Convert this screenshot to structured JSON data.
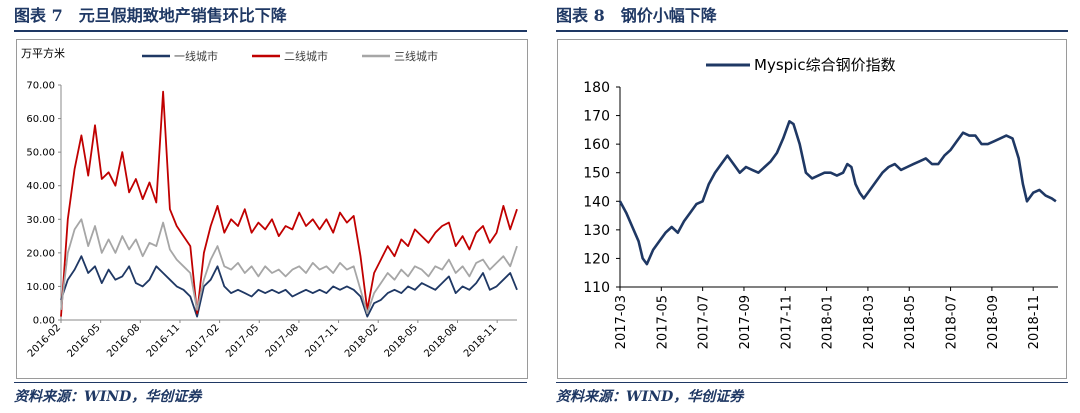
{
  "left_panel": {
    "heading": "图表 7　元旦假期致地产销售环比下降",
    "source": "资料来源：WIND，华创证券"
  },
  "right_panel": {
    "heading": "图表 8　钢价小幅下降",
    "source": "资料来源：WIND，华创证券"
  },
  "chart_data": [
    {
      "type": "line",
      "title": "",
      "ylabel": "万平方米",
      "xlabel": "",
      "ylim": [
        0,
        70
      ],
      "y_ticks": [
        "0.00",
        "10.00",
        "20.00",
        "30.00",
        "40.00",
        "50.00",
        "60.00",
        "70.00"
      ],
      "x_ticks": [
        "2016-02",
        "2016-05",
        "2016-08",
        "2016-11",
        "2017-02",
        "2017-05",
        "2017-08",
        "2017-11",
        "2018-02",
        "2018-05",
        "2018-08",
        "2018-11"
      ],
      "legend_position": "top",
      "grid": false,
      "series": [
        {
          "name": "一线城市",
          "color": "#1f3864",
          "points": [
            [
              0,
              6
            ],
            [
              2,
              12
            ],
            [
              4,
              15
            ],
            [
              6,
              19
            ],
            [
              8,
              14
            ],
            [
              10,
              16
            ],
            [
              12,
              11
            ],
            [
              14,
              15
            ],
            [
              16,
              12
            ],
            [
              18,
              13
            ],
            [
              20,
              16
            ],
            [
              22,
              11
            ],
            [
              24,
              10
            ],
            [
              26,
              12
            ],
            [
              28,
              16
            ],
            [
              30,
              14
            ],
            [
              32,
              12
            ],
            [
              34,
              10
            ],
            [
              36,
              9
            ],
            [
              38,
              7
            ],
            [
              40,
              1
            ],
            [
              42,
              10
            ],
            [
              44,
              12
            ],
            [
              46,
              16
            ],
            [
              48,
              10
            ],
            [
              50,
              8
            ],
            [
              52,
              9
            ],
            [
              54,
              8
            ],
            [
              56,
              7
            ],
            [
              58,
              9
            ],
            [
              60,
              8
            ],
            [
              62,
              9
            ],
            [
              64,
              8
            ],
            [
              66,
              9
            ],
            [
              68,
              7
            ],
            [
              70,
              8
            ],
            [
              72,
              9
            ],
            [
              74,
              8
            ],
            [
              76,
              9
            ],
            [
              78,
              8
            ],
            [
              80,
              10
            ],
            [
              82,
              9
            ],
            [
              84,
              10
            ],
            [
              86,
              9
            ],
            [
              88,
              7
            ],
            [
              90,
              1
            ],
            [
              92,
              5
            ],
            [
              94,
              6
            ],
            [
              96,
              8
            ],
            [
              98,
              9
            ],
            [
              100,
              8
            ],
            [
              102,
              10
            ],
            [
              104,
              9
            ],
            [
              106,
              11
            ],
            [
              108,
              10
            ],
            [
              110,
              9
            ],
            [
              112,
              11
            ],
            [
              114,
              13
            ],
            [
              116,
              8
            ],
            [
              118,
              10
            ],
            [
              120,
              9
            ],
            [
              122,
              11
            ],
            [
              124,
              14
            ],
            [
              126,
              9
            ],
            [
              128,
              10
            ],
            [
              130,
              12
            ],
            [
              132,
              14
            ],
            [
              134,
              9
            ]
          ]
        },
        {
          "name": "二线城市",
          "color": "#c00000",
          "points": [
            [
              0,
              1
            ],
            [
              2,
              30
            ],
            [
              4,
              45
            ],
            [
              6,
              55
            ],
            [
              8,
              43
            ],
            [
              10,
              58
            ],
            [
              12,
              42
            ],
            [
              14,
              44
            ],
            [
              16,
              40
            ],
            [
              18,
              50
            ],
            [
              20,
              38
            ],
            [
              22,
              42
            ],
            [
              24,
              36
            ],
            [
              26,
              41
            ],
            [
              28,
              35
            ],
            [
              30,
              68
            ],
            [
              32,
              33
            ],
            [
              34,
              28
            ],
            [
              36,
              25
            ],
            [
              38,
              22
            ],
            [
              40,
              2
            ],
            [
              42,
              20
            ],
            [
              44,
              28
            ],
            [
              46,
              34
            ],
            [
              48,
              26
            ],
            [
              50,
              30
            ],
            [
              52,
              28
            ],
            [
              54,
              33
            ],
            [
              56,
              26
            ],
            [
              58,
              29
            ],
            [
              60,
              27
            ],
            [
              62,
              30
            ],
            [
              64,
              25
            ],
            [
              66,
              28
            ],
            [
              68,
              27
            ],
            [
              70,
              32
            ],
            [
              72,
              28
            ],
            [
              74,
              30
            ],
            [
              76,
              27
            ],
            [
              78,
              30
            ],
            [
              80,
              26
            ],
            [
              82,
              32
            ],
            [
              84,
              29
            ],
            [
              86,
              31
            ],
            [
              88,
              19
            ],
            [
              90,
              3
            ],
            [
              92,
              14
            ],
            [
              94,
              18
            ],
            [
              96,
              22
            ],
            [
              98,
              19
            ],
            [
              100,
              24
            ],
            [
              102,
              22
            ],
            [
              104,
              27
            ],
            [
              106,
              25
            ],
            [
              108,
              23
            ],
            [
              110,
              26
            ],
            [
              112,
              28
            ],
            [
              114,
              29
            ],
            [
              116,
              22
            ],
            [
              118,
              25
            ],
            [
              120,
              21
            ],
            [
              122,
              26
            ],
            [
              124,
              28
            ],
            [
              126,
              23
            ],
            [
              128,
              26
            ],
            [
              130,
              34
            ],
            [
              132,
              27
            ],
            [
              134,
              33
            ]
          ]
        },
        {
          "name": "三线城市",
          "color": "#a6a6a6",
          "points": [
            [
              0,
              3
            ],
            [
              2,
              20
            ],
            [
              4,
              27
            ],
            [
              6,
              30
            ],
            [
              8,
              22
            ],
            [
              10,
              28
            ],
            [
              12,
              20
            ],
            [
              14,
              24
            ],
            [
              16,
              20
            ],
            [
              18,
              25
            ],
            [
              20,
              21
            ],
            [
              22,
              24
            ],
            [
              24,
              19
            ],
            [
              26,
              23
            ],
            [
              28,
              22
            ],
            [
              30,
              29
            ],
            [
              32,
              21
            ],
            [
              34,
              18
            ],
            [
              36,
              16
            ],
            [
              38,
              14
            ],
            [
              40,
              3
            ],
            [
              42,
              12
            ],
            [
              44,
              18
            ],
            [
              46,
              22
            ],
            [
              48,
              16
            ],
            [
              50,
              15
            ],
            [
              52,
              17
            ],
            [
              54,
              14
            ],
            [
              56,
              16
            ],
            [
              58,
              13
            ],
            [
              60,
              16
            ],
            [
              62,
              14
            ],
            [
              64,
              15
            ],
            [
              66,
              13
            ],
            [
              68,
              15
            ],
            [
              70,
              16
            ],
            [
              72,
              14
            ],
            [
              74,
              17
            ],
            [
              76,
              15
            ],
            [
              78,
              16
            ],
            [
              80,
              14
            ],
            [
              82,
              17
            ],
            [
              84,
              15
            ],
            [
              86,
              16
            ],
            [
              88,
              9
            ],
            [
              90,
              2
            ],
            [
              92,
              8
            ],
            [
              94,
              11
            ],
            [
              96,
              14
            ],
            [
              98,
              12
            ],
            [
              100,
              15
            ],
            [
              102,
              13
            ],
            [
              104,
              16
            ],
            [
              106,
              15
            ],
            [
              108,
              13
            ],
            [
              110,
              16
            ],
            [
              112,
              15
            ],
            [
              114,
              18
            ],
            [
              116,
              14
            ],
            [
              118,
              16
            ],
            [
              120,
              13
            ],
            [
              122,
              17
            ],
            [
              124,
              18
            ],
            [
              126,
              15
            ],
            [
              128,
              17
            ],
            [
              130,
              19
            ],
            [
              132,
              16
            ],
            [
              134,
              22
            ]
          ]
        }
      ]
    },
    {
      "type": "line",
      "title": "",
      "ylabel": "",
      "xlabel": "",
      "ylim": [
        110,
        180
      ],
      "y_ticks": [
        "110",
        "120",
        "130",
        "140",
        "150",
        "160",
        "170",
        "180"
      ],
      "x_ticks": [
        "2017-03",
        "2017-05",
        "2017-07",
        "2017-09",
        "2017-11",
        "2018-01",
        "2018-03",
        "2018-05",
        "2018-07",
        "2018-09",
        "2018-11"
      ],
      "legend_position": "top",
      "grid": false,
      "series": [
        {
          "name": "Myspic综合钢价指数",
          "color": "#1f3864",
          "points": [
            [
              0,
              140
            ],
            [
              0.3,
              136
            ],
            [
              0.6,
              131
            ],
            [
              0.9,
              126
            ],
            [
              1.1,
              120
            ],
            [
              1.3,
              118
            ],
            [
              1.6,
              123
            ],
            [
              1.9,
              126
            ],
            [
              2.2,
              129
            ],
            [
              2.5,
              131
            ],
            [
              2.8,
              129
            ],
            [
              3.1,
              133
            ],
            [
              3.4,
              136
            ],
            [
              3.7,
              139
            ],
            [
              4.0,
              140
            ],
            [
              4.3,
              146
            ],
            [
              4.6,
              150
            ],
            [
              4.9,
              153
            ],
            [
              5.2,
              156
            ],
            [
              5.5,
              153
            ],
            [
              5.8,
              150
            ],
            [
              6.1,
              152
            ],
            [
              6.4,
              151
            ],
            [
              6.7,
              150
            ],
            [
              7.0,
              152
            ],
            [
              7.3,
              154
            ],
            [
              7.6,
              157
            ],
            [
              7.9,
              162
            ],
            [
              8.2,
              168
            ],
            [
              8.4,
              167
            ],
            [
              8.7,
              160
            ],
            [
              9.0,
              150
            ],
            [
              9.3,
              148
            ],
            [
              9.6,
              149
            ],
            [
              9.9,
              150
            ],
            [
              10.2,
              150
            ],
            [
              10.5,
              149
            ],
            [
              10.8,
              150
            ],
            [
              11.0,
              153
            ],
            [
              11.2,
              152
            ],
            [
              11.4,
              146
            ],
            [
              11.6,
              143
            ],
            [
              11.8,
              141
            ],
            [
              12.1,
              144
            ],
            [
              12.4,
              147
            ],
            [
              12.7,
              150
            ],
            [
              13.0,
              152
            ],
            [
              13.3,
              153
            ],
            [
              13.6,
              151
            ],
            [
              13.9,
              152
            ],
            [
              14.2,
              153
            ],
            [
              14.5,
              154
            ],
            [
              14.8,
              155
            ],
            [
              15.1,
              153
            ],
            [
              15.4,
              153
            ],
            [
              15.7,
              156
            ],
            [
              16.0,
              158
            ],
            [
              16.3,
              161
            ],
            [
              16.6,
              164
            ],
            [
              16.9,
              163
            ],
            [
              17.2,
              163
            ],
            [
              17.5,
              160
            ],
            [
              17.8,
              160
            ],
            [
              18.1,
              161
            ],
            [
              18.4,
              162
            ],
            [
              18.7,
              163
            ],
            [
              19.0,
              162
            ],
            [
              19.3,
              155
            ],
            [
              19.5,
              146
            ],
            [
              19.7,
              140
            ],
            [
              20.0,
              143
            ],
            [
              20.3,
              144
            ],
            [
              20.6,
              142
            ],
            [
              20.9,
              141
            ],
            [
              21.1,
              140
            ]
          ]
        }
      ]
    }
  ]
}
